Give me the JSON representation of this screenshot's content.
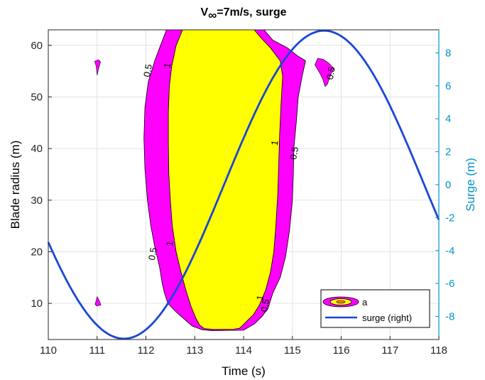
{
  "chart_data": {
    "type": "contour",
    "title_main": "V",
    "title_sub": "∞",
    "title_rest": "=7m/s, surge",
    "xlabel": "Time (s)",
    "ylabel_left": "Blade radius (m)",
    "ylabel_right": "Surge (m)",
    "xlim": [
      110,
      118
    ],
    "ylim_left": [
      3,
      63
    ],
    "ylim_right": [
      -9.4,
      9.4
    ],
    "x_ticks": [
      "110",
      "111",
      "112",
      "113",
      "114",
      "115",
      "116",
      "117",
      "118"
    ],
    "y_left_ticks": [
      "10",
      "20",
      "30",
      "40",
      "50",
      "60"
    ],
    "y_right_ticks": [
      "-8",
      "-6",
      "-4",
      "-2",
      "0",
      "2",
      "4",
      "6",
      "8"
    ],
    "grid": true,
    "legend_position": "bottom-right",
    "legend": [
      {
        "label": "a",
        "kind": "contour"
      },
      {
        "label": "surge (right)",
        "kind": "line"
      }
    ],
    "contour_levels": [
      {
        "level": "0.5",
        "color": "#ff00ff"
      },
      {
        "level": "1",
        "color": "#ffff00"
      }
    ],
    "contour_labels": [
      {
        "text": "0.5",
        "x": 112.1,
        "y": 55
      },
      {
        "text": "1",
        "x": 112.5,
        "y": 56
      },
      {
        "text": "1",
        "x": 114.7,
        "y": 41
      },
      {
        "text": "0.5",
        "x": 115.1,
        "y": 39
      },
      {
        "text": "0.5",
        "x": 115.85,
        "y": 54.5
      },
      {
        "text": "0.5",
        "x": 112.2,
        "y": 19.5
      },
      {
        "text": "1",
        "x": 112.55,
        "y": 21.5
      },
      {
        "text": "1",
        "x": 114.4,
        "y": 11
      },
      {
        "text": "0.5",
        "x": 114.5,
        "y": 9.5
      }
    ],
    "region_outer_left": [
      [
        112.42,
        63
      ],
      [
        112.3,
        60
      ],
      [
        112.18,
        57
      ],
      [
        112.05,
        53
      ],
      [
        111.98,
        48
      ],
      [
        111.96,
        42
      ],
      [
        111.98,
        36
      ],
      [
        112.03,
        30
      ],
      [
        112.1,
        25
      ],
      [
        112.18,
        21
      ],
      [
        112.28,
        17
      ],
      [
        112.33,
        14
      ],
      [
        112.38,
        12
      ],
      [
        112.45,
        10
      ],
      [
        112.6,
        8.5
      ],
      [
        112.78,
        7
      ],
      [
        112.95,
        5.6
      ],
      [
        113.15,
        4.9
      ],
      [
        113.35,
        4.7
      ]
    ],
    "region_outer_right": [
      [
        114.0,
        4.8
      ],
      [
        114.22,
        6
      ],
      [
        114.38,
        7.5
      ],
      [
        114.5,
        9
      ],
      [
        114.6,
        12
      ],
      [
        114.75,
        15
      ],
      [
        114.86,
        19
      ],
      [
        114.94,
        24
      ],
      [
        115.0,
        30
      ],
      [
        115.02,
        35
      ],
      [
        115.03,
        40
      ],
      [
        115.08,
        45
      ],
      [
        115.12,
        50
      ],
      [
        115.2,
        54
      ],
      [
        115.27,
        57
      ],
      [
        115.1,
        58
      ],
      [
        114.9,
        59.5
      ],
      [
        114.6,
        61
      ],
      [
        114.42,
        63
      ]
    ],
    "region_inner_left": [
      [
        112.75,
        63
      ],
      [
        112.62,
        60
      ],
      [
        112.53,
        56
      ],
      [
        112.48,
        52
      ],
      [
        112.46,
        47
      ],
      [
        112.46,
        41
      ],
      [
        112.47,
        35
      ],
      [
        112.5,
        30
      ],
      [
        112.54,
        25
      ],
      [
        112.62,
        20
      ],
      [
        112.72,
        16
      ],
      [
        112.82,
        12.5
      ],
      [
        112.92,
        9.5
      ],
      [
        113.02,
        7.2
      ],
      [
        113.1,
        5.8
      ],
      [
        113.2,
        5.1
      ],
      [
        113.38,
        4.95
      ]
    ],
    "region_inner_right": [
      [
        113.8,
        5.0
      ],
      [
        113.92,
        5.2
      ],
      [
        114.05,
        6.4
      ],
      [
        114.2,
        7.8
      ],
      [
        114.32,
        9.6
      ],
      [
        114.45,
        12.5
      ],
      [
        114.55,
        16
      ],
      [
        114.62,
        20
      ],
      [
        114.66,
        25
      ],
      [
        114.7,
        31
      ],
      [
        114.72,
        37
      ],
      [
        114.74,
        43
      ],
      [
        114.77,
        49
      ],
      [
        114.8,
        54
      ],
      [
        114.75,
        57
      ],
      [
        114.55,
        59.5
      ],
      [
        114.35,
        61.5
      ],
      [
        114.22,
        63
      ]
    ],
    "small_patches": [
      [
        [
          111.03,
          57.2
        ],
        [
          110.95,
          56.9
        ],
        [
          110.98,
          56
        ],
        [
          111.0,
          54.2
        ],
        [
          111.03,
          55.5
        ],
        [
          111.07,
          56.8
        ]
      ],
      [
        [
          111.0,
          11.3
        ],
        [
          110.96,
          9.8
        ],
        [
          110.99,
          9.5
        ],
        [
          111.08,
          9.7
        ],
        [
          111.03,
          10.8
        ]
      ],
      [
        [
          115.52,
          57.5
        ],
        [
          115.63,
          57.3
        ],
        [
          115.75,
          56.5
        ],
        [
          115.85,
          55.5
        ],
        [
          115.78,
          54.2
        ],
        [
          115.72,
          52.5
        ],
        [
          115.67,
          52.0
        ],
        [
          115.62,
          53.5
        ],
        [
          115.55,
          54.8
        ],
        [
          115.46,
          56.2
        ]
      ]
    ],
    "surge_series": {
      "name": "surge (right)",
      "amplitude": 9.35,
      "center_time": 113.6,
      "period": 8.2,
      "comment_free": true
    }
  }
}
